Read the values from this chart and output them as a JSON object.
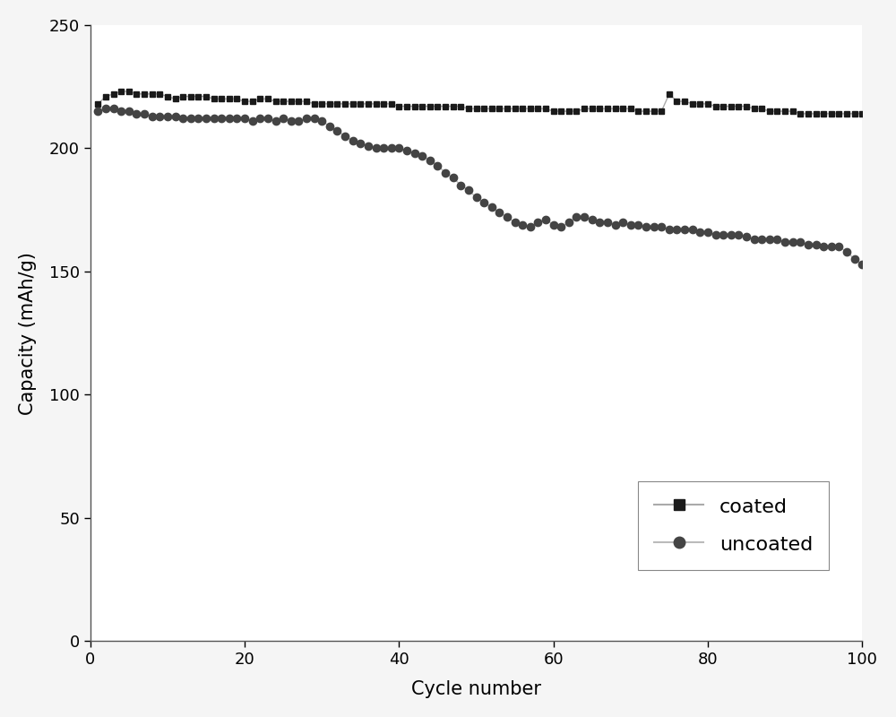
{
  "title": "",
  "xlabel": "Cycle number",
  "ylabel": "Capacity (mAh/g)",
  "xlim": [
    0,
    100
  ],
  "ylim": [
    0,
    250
  ],
  "xticks": [
    0,
    20,
    40,
    60,
    80,
    100
  ],
  "yticks": [
    0,
    50,
    100,
    150,
    200,
    250
  ],
  "coated_color": "#1a1a1a",
  "uncoated_color": "#444444",
  "line_color_coated": "#aaaaaa",
  "line_color_uncoated": "#bbbbbb",
  "background_color": "#f5f5f5",
  "coated_x": [
    1,
    2,
    3,
    4,
    5,
    6,
    7,
    8,
    9,
    10,
    11,
    12,
    13,
    14,
    15,
    16,
    17,
    18,
    19,
    20,
    21,
    22,
    23,
    24,
    25,
    26,
    27,
    28,
    29,
    30,
    31,
    32,
    33,
    34,
    35,
    36,
    37,
    38,
    39,
    40,
    41,
    42,
    43,
    44,
    45,
    46,
    47,
    48,
    49,
    50,
    51,
    52,
    53,
    54,
    55,
    56,
    57,
    58,
    59,
    60,
    61,
    62,
    63,
    64,
    65,
    66,
    67,
    68,
    69,
    70,
    71,
    72,
    73,
    74,
    75,
    76,
    77,
    78,
    79,
    80,
    81,
    82,
    83,
    84,
    85,
    86,
    87,
    88,
    89,
    90,
    91,
    92,
    93,
    94,
    95,
    96,
    97,
    98,
    99,
    100
  ],
  "coated_y": [
    218,
    221,
    222,
    223,
    223,
    222,
    222,
    222,
    222,
    221,
    220,
    221,
    221,
    221,
    221,
    220,
    220,
    220,
    220,
    219,
    219,
    220,
    220,
    219,
    219,
    219,
    219,
    219,
    218,
    218,
    218,
    218,
    218,
    218,
    218,
    218,
    218,
    218,
    218,
    217,
    217,
    217,
    217,
    217,
    217,
    217,
    217,
    217,
    216,
    216,
    216,
    216,
    216,
    216,
    216,
    216,
    216,
    216,
    216,
    215,
    215,
    215,
    215,
    216,
    216,
    216,
    216,
    216,
    216,
    216,
    215,
    215,
    215,
    215,
    222,
    219,
    219,
    218,
    218,
    218,
    217,
    217,
    217,
    217,
    217,
    216,
    216,
    215,
    215,
    215,
    215,
    214,
    214,
    214,
    214,
    214,
    214,
    214,
    214,
    214
  ],
  "uncoated_x": [
    1,
    2,
    3,
    4,
    5,
    6,
    7,
    8,
    9,
    10,
    11,
    12,
    13,
    14,
    15,
    16,
    17,
    18,
    19,
    20,
    21,
    22,
    23,
    24,
    25,
    26,
    27,
    28,
    29,
    30,
    31,
    32,
    33,
    34,
    35,
    36,
    37,
    38,
    39,
    40,
    41,
    42,
    43,
    44,
    45,
    46,
    47,
    48,
    49,
    50,
    51,
    52,
    53,
    54,
    55,
    56,
    57,
    58,
    59,
    60,
    61,
    62,
    63,
    64,
    65,
    66,
    67,
    68,
    69,
    70,
    71,
    72,
    73,
    74,
    75,
    76,
    77,
    78,
    79,
    80,
    81,
    82,
    83,
    84,
    85,
    86,
    87,
    88,
    89,
    90,
    91,
    92,
    93,
    94,
    95,
    96,
    97,
    98,
    99,
    100
  ],
  "uncoated_y": [
    215,
    216,
    216,
    215,
    215,
    214,
    214,
    213,
    213,
    213,
    213,
    212,
    212,
    212,
    212,
    212,
    212,
    212,
    212,
    212,
    211,
    212,
    212,
    211,
    212,
    211,
    211,
    212,
    212,
    211,
    209,
    207,
    205,
    203,
    202,
    201,
    200,
    200,
    200,
    200,
    199,
    198,
    197,
    195,
    193,
    190,
    188,
    185,
    183,
    180,
    178,
    176,
    174,
    172,
    170,
    169,
    168,
    170,
    171,
    169,
    168,
    170,
    172,
    172,
    171,
    170,
    170,
    169,
    170,
    169,
    169,
    168,
    168,
    168,
    167,
    167,
    167,
    167,
    166,
    166,
    165,
    165,
    165,
    165,
    164,
    163,
    163,
    163,
    163,
    162,
    162,
    162,
    161,
    161,
    160,
    160,
    160,
    158,
    155,
    153
  ]
}
